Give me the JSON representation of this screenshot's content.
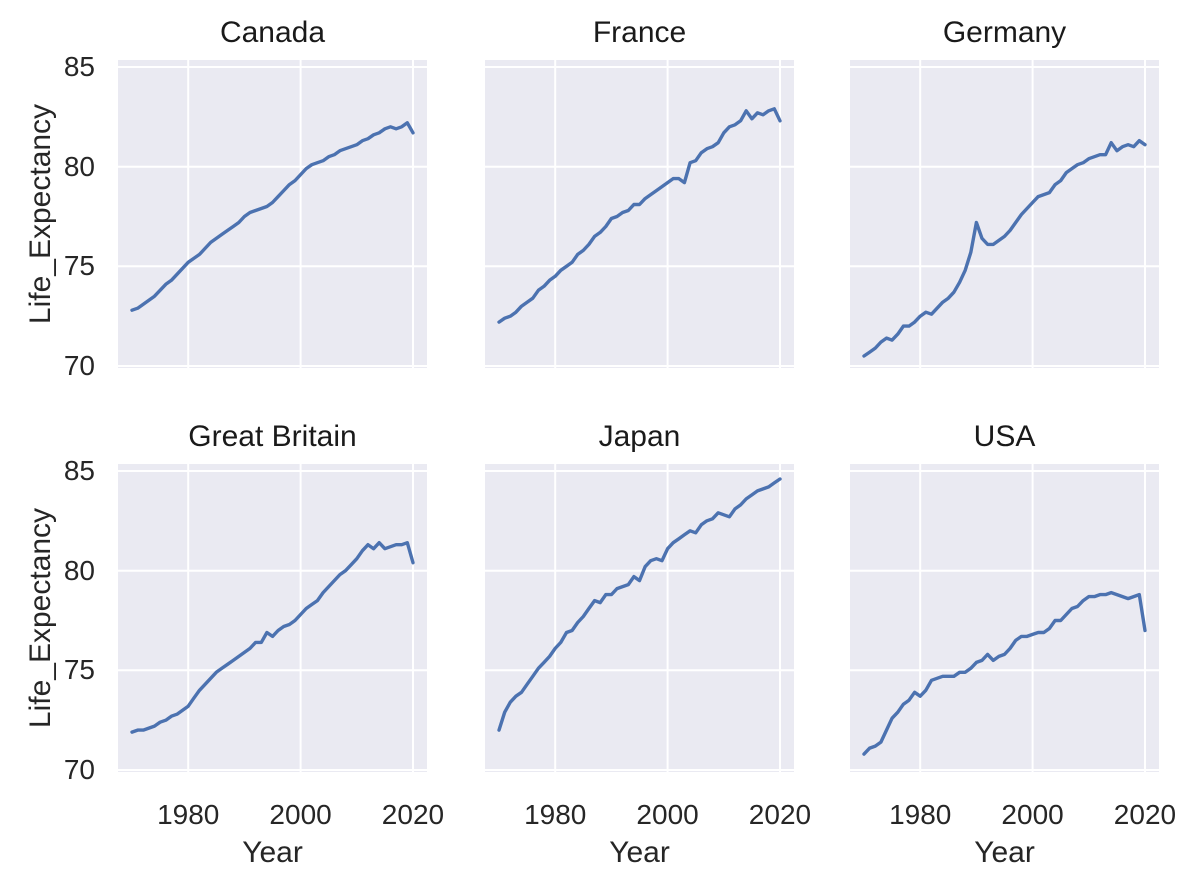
{
  "chart_data": {
    "type": "line",
    "layout": "facet-grid-2-rows-3-cols",
    "xlabel": "Year",
    "ylabel": "Life_Expectancy",
    "x_ticks": [
      1980,
      2000,
      2020
    ],
    "y_ticks": [
      70,
      75,
      80,
      85
    ],
    "xlim": [
      1967.5,
      2022.5
    ],
    "ylim": [
      69.9,
      85.35
    ],
    "grid": true,
    "legend": "none",
    "line_color": "#4c72b0",
    "panel_bg": "#eaeaf2",
    "grid_color": "#ffffff",
    "text_color": "#262626",
    "background": "#ffffff",
    "x": [
      1970,
      1971,
      1972,
      1973,
      1974,
      1975,
      1976,
      1977,
      1978,
      1979,
      1980,
      1981,
      1982,
      1983,
      1984,
      1985,
      1986,
      1987,
      1988,
      1989,
      1990,
      1991,
      1992,
      1993,
      1994,
      1995,
      1996,
      1997,
      1998,
      1999,
      2000,
      2001,
      2002,
      2003,
      2004,
      2005,
      2006,
      2007,
      2008,
      2009,
      2010,
      2011,
      2012,
      2013,
      2014,
      2015,
      2016,
      2017,
      2018,
      2019,
      2020
    ],
    "facets": [
      {
        "title": "Canada",
        "values": [
          72.8,
          72.9,
          73.1,
          73.3,
          73.5,
          73.8,
          74.1,
          74.3,
          74.6,
          74.9,
          75.2,
          75.4,
          75.6,
          75.9,
          76.2,
          76.4,
          76.6,
          76.8,
          77.0,
          77.2,
          77.5,
          77.7,
          77.8,
          77.9,
          78.0,
          78.2,
          78.5,
          78.8,
          79.1,
          79.3,
          79.6,
          79.9,
          80.1,
          80.2,
          80.3,
          80.5,
          80.6,
          80.8,
          80.9,
          81.0,
          81.1,
          81.3,
          81.4,
          81.6,
          81.7,
          81.9,
          82.0,
          81.9,
          82.0,
          82.2,
          81.7
        ]
      },
      {
        "title": "France",
        "values": [
          72.2,
          72.4,
          72.5,
          72.7,
          73.0,
          73.2,
          73.4,
          73.8,
          74.0,
          74.3,
          74.5,
          74.8,
          75.0,
          75.2,
          75.6,
          75.8,
          76.1,
          76.5,
          76.7,
          77.0,
          77.4,
          77.5,
          77.7,
          77.8,
          78.1,
          78.1,
          78.4,
          78.6,
          78.8,
          79.0,
          79.2,
          79.4,
          79.4,
          79.2,
          80.2,
          80.3,
          80.7,
          80.9,
          81.0,
          81.2,
          81.7,
          82.0,
          82.1,
          82.3,
          82.8,
          82.4,
          82.7,
          82.6,
          82.8,
          82.9,
          82.3
        ]
      },
      {
        "title": "Germany",
        "values": [
          70.5,
          70.7,
          70.9,
          71.2,
          71.4,
          71.3,
          71.6,
          72.0,
          72.0,
          72.2,
          72.5,
          72.7,
          72.6,
          72.9,
          73.2,
          73.4,
          73.7,
          74.2,
          74.8,
          75.7,
          77.2,
          76.4,
          76.1,
          76.1,
          76.3,
          76.5,
          76.8,
          77.2,
          77.6,
          77.9,
          78.2,
          78.5,
          78.6,
          78.7,
          79.1,
          79.3,
          79.7,
          79.9,
          80.1,
          80.2,
          80.4,
          80.5,
          80.6,
          80.6,
          81.2,
          80.8,
          81.0,
          81.1,
          81.0,
          81.3,
          81.1
        ]
      },
      {
        "title": "Great Britain",
        "values": [
          71.9,
          72.0,
          72.0,
          72.1,
          72.2,
          72.4,
          72.5,
          72.7,
          72.8,
          73.0,
          73.2,
          73.6,
          74.0,
          74.3,
          74.6,
          74.9,
          75.1,
          75.3,
          75.5,
          75.7,
          75.9,
          76.1,
          76.4,
          76.4,
          76.9,
          76.7,
          77.0,
          77.2,
          77.3,
          77.5,
          77.8,
          78.1,
          78.3,
          78.5,
          78.9,
          79.2,
          79.5,
          79.8,
          80.0,
          80.3,
          80.6,
          81.0,
          81.3,
          81.1,
          81.4,
          81.1,
          81.2,
          81.3,
          81.3,
          81.4,
          80.4
        ]
      },
      {
        "title": "Japan",
        "values": [
          72.0,
          72.9,
          73.4,
          73.7,
          73.9,
          74.3,
          74.7,
          75.1,
          75.4,
          75.7,
          76.1,
          76.4,
          76.9,
          77.0,
          77.4,
          77.7,
          78.1,
          78.5,
          78.4,
          78.8,
          78.8,
          79.1,
          79.2,
          79.3,
          79.7,
          79.5,
          80.2,
          80.5,
          80.6,
          80.5,
          81.1,
          81.4,
          81.6,
          81.8,
          82.0,
          81.9,
          82.3,
          82.5,
          82.6,
          82.9,
          82.8,
          82.7,
          83.1,
          83.3,
          83.6,
          83.8,
          84.0,
          84.1,
          84.2,
          84.4,
          84.6
        ]
      },
      {
        "title": "USA",
        "values": [
          70.8,
          71.1,
          71.2,
          71.4,
          72.0,
          72.6,
          72.9,
          73.3,
          73.5,
          73.9,
          73.7,
          74.0,
          74.5,
          74.6,
          74.7,
          74.7,
          74.7,
          74.9,
          74.9,
          75.1,
          75.4,
          75.5,
          75.8,
          75.5,
          75.7,
          75.8,
          76.1,
          76.5,
          76.7,
          76.7,
          76.8,
          76.9,
          76.9,
          77.1,
          77.5,
          77.5,
          77.8,
          78.1,
          78.2,
          78.5,
          78.7,
          78.7,
          78.8,
          78.8,
          78.9,
          78.8,
          78.7,
          78.6,
          78.7,
          78.8,
          77.0
        ]
      }
    ]
  }
}
